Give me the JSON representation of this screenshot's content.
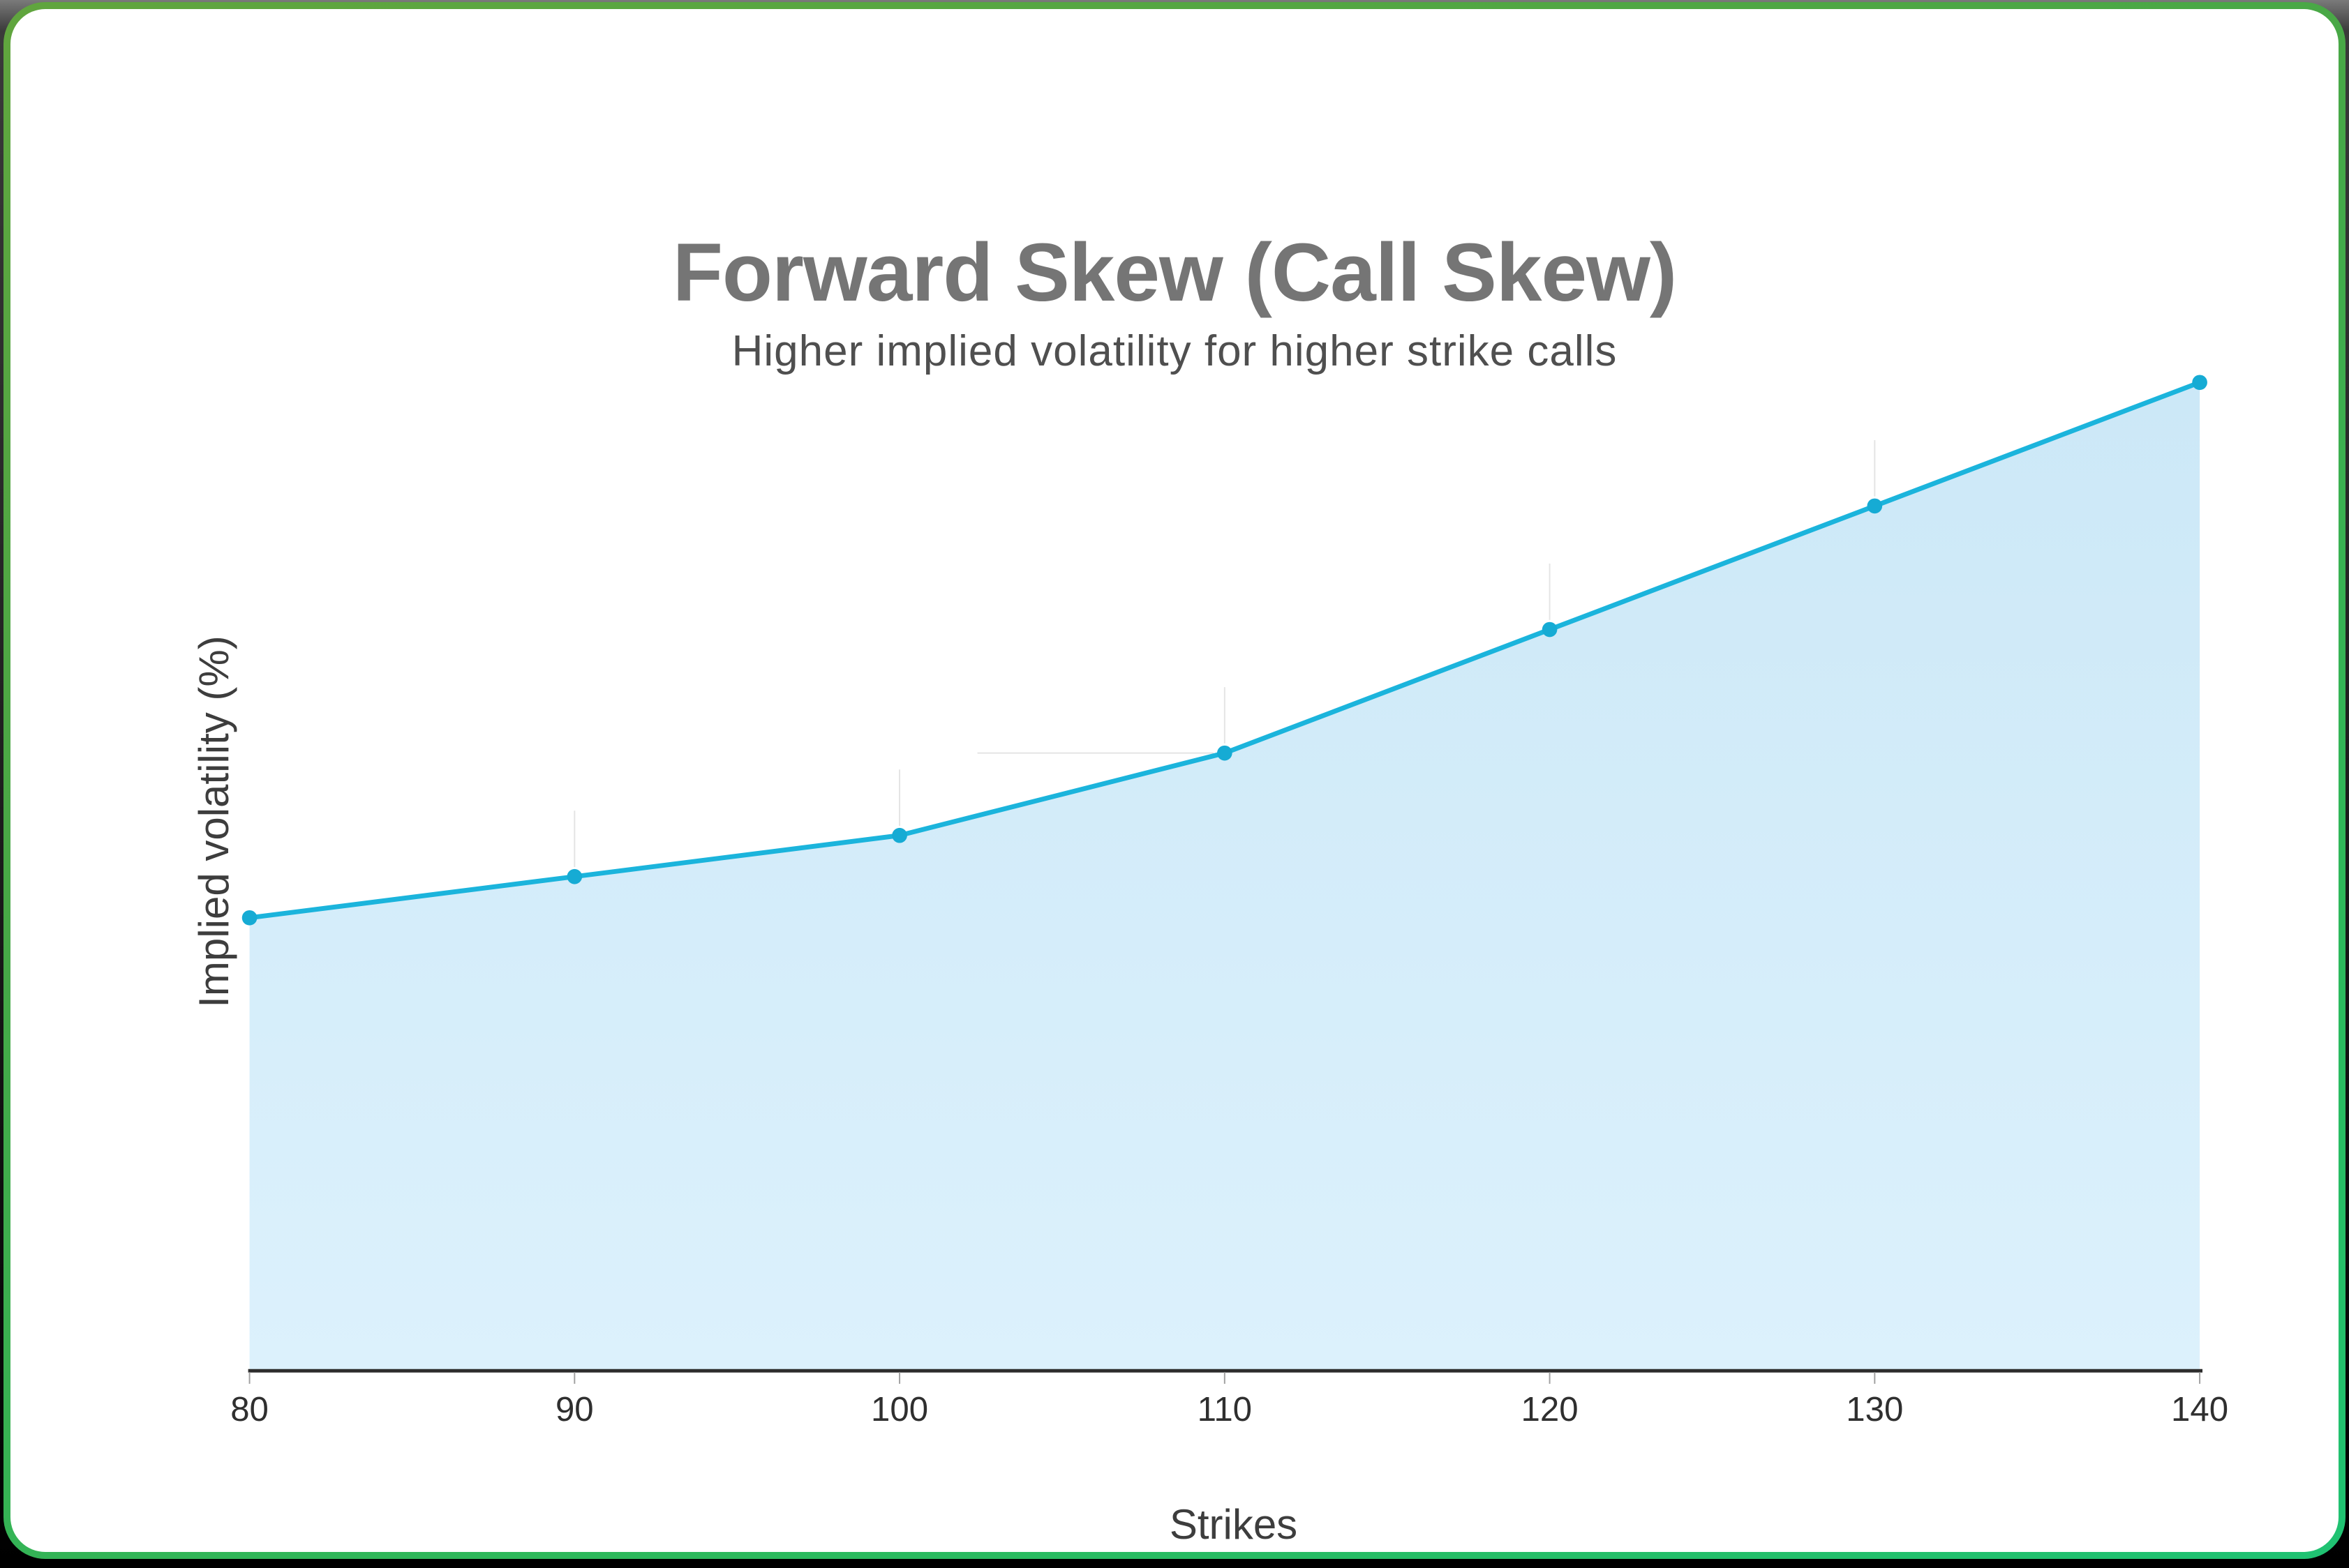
{
  "page": {
    "background_color": "#000000",
    "card_background": "#ffffff",
    "card_border_gradient": [
      "#61a53e",
      "#1fc273"
    ]
  },
  "chart_data": {
    "type": "area",
    "title": "Forward Skew (Call Skew)",
    "subtitle": "Higher implied volatility for higher strike calls",
    "xlabel": "Strikes",
    "ylabel": "Implied volatility (%)",
    "categories": [
      "80",
      "90",
      "100",
      "110",
      "120",
      "130",
      "140"
    ],
    "values": [
      20,
      21,
      22,
      24,
      27,
      30,
      33
    ],
    "ylim": [
      9,
      34
    ],
    "xlim": [
      80,
      140
    ],
    "legend": "none",
    "grid": "minimal-guides",
    "y_tick_labels_visible": false,
    "line_color": "#1bb4dc",
    "point_color": "#16abd4",
    "fill_color_top": "#cce8f7",
    "fill_color_bottom": "#dcf1fc",
    "guide_color": "#e4e4e4",
    "axis_color": "#2d2d2d",
    "tick_color": "#a0a0a0",
    "tick_label_color": "#2f2f2f",
    "title_color": "#757575",
    "subtitle_color": "#4f4f4f",
    "axis_title_color": "#3d3d3d"
  }
}
